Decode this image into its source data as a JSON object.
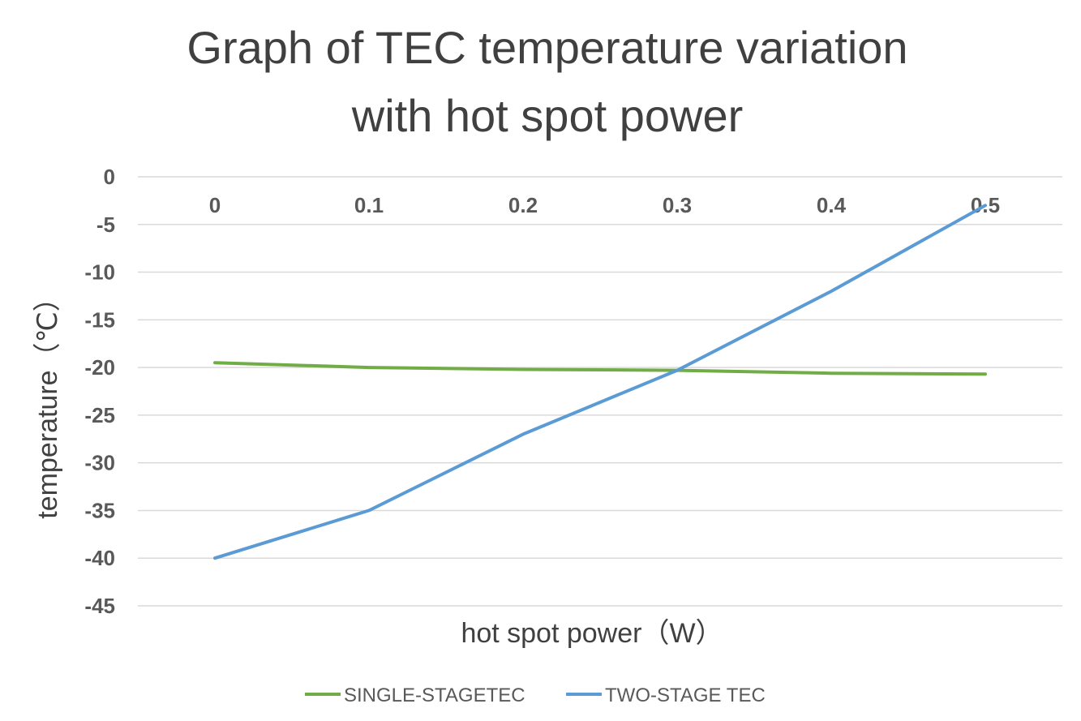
{
  "chart_data": {
    "type": "line",
    "title_lines": [
      "Graph of TEC temperature variation",
      "with hot spot power"
    ],
    "xlabel": "hot spot power（W）",
    "ylabel": "temperature（℃）",
    "x": [
      "0",
      "0.1",
      "0.2",
      "0.3",
      "0.4",
      "0.5"
    ],
    "y_ticks": [
      "0",
      "-5",
      "-10",
      "-15",
      "-20",
      "-25",
      "-30",
      "-35",
      "-40",
      "-45"
    ],
    "ylim": [
      -45,
      0
    ],
    "x_axis_position": "top",
    "grid": true,
    "legend_position": "bottom",
    "series": [
      {
        "name": "SINGLE-STAGETEC",
        "color": "#70ad47",
        "values": [
          -19.5,
          -20.0,
          -20.2,
          -20.3,
          -20.6,
          -20.7
        ]
      },
      {
        "name": "TWO-STAGE TEC",
        "color": "#5b9bd5",
        "values": [
          -40.0,
          -35.0,
          -27.0,
          -20.3,
          -12.0,
          -3.0
        ]
      }
    ]
  }
}
